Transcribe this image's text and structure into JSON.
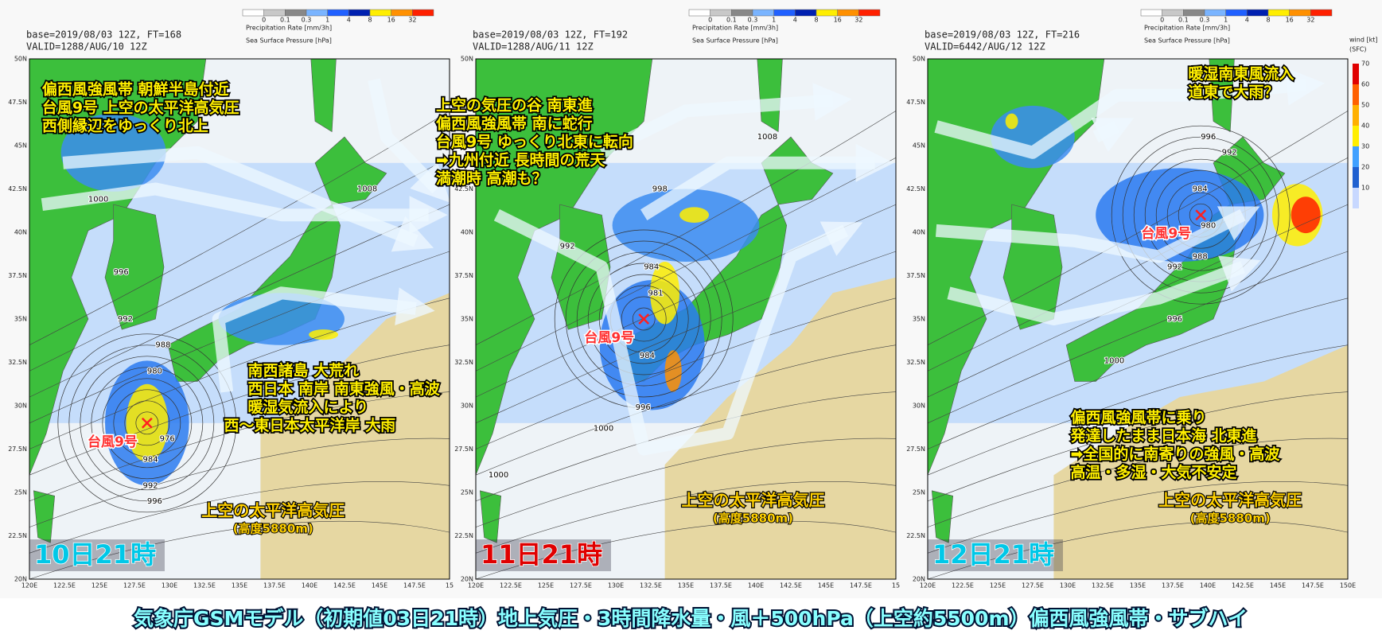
{
  "legend": {
    "precip_title": "Precipitation Rate [mm/3h]",
    "pressure_title": "Sea Surface Pressure [hPa]",
    "precip_levels": [
      0,
      0.1,
      0.3,
      1,
      4,
      8,
      16,
      32
    ],
    "wind_title": "wind [kt]",
    "wind_unit": "(SFC)",
    "wind_levels": [
      70,
      60,
      50,
      40,
      30,
      20,
      10
    ]
  },
  "axes": {
    "lat_labels": [
      "50N",
      "47.5N",
      "45N",
      "42.5N",
      "40N",
      "37.5N",
      "35N",
      "32.5N",
      "30N",
      "27.5N",
      "25N",
      "22.5N",
      "20N"
    ],
    "lon_labels": [
      "120E",
      "122.5E",
      "125E",
      "127.5E",
      "130E",
      "132.5E",
      "135E",
      "137.5E",
      "140E",
      "142.5E",
      "145E",
      "147.5E"
    ]
  },
  "panels": [
    {
      "base": "base=2019/08/03 12Z, FT=168",
      "valid": "VALID=1288/AUG/10 12Z",
      "lon_end": "15",
      "time": "10日21時",
      "typhoon": "台風9号",
      "note_a": [
        "偏西風強風帯 朝鮮半島付近",
        "台風9号 上空の太平洋高気圧",
        "西側縁辺をゆっくり北上"
      ],
      "note_b": [
        "南西諸島 大荒れ",
        "西日本 南岸 南東強風・高波",
        "暖湿気流入により",
        "西～東日本太平洋岸 大雨"
      ],
      "high": "上空の太平洋高気圧",
      "height": "(高度5880m)",
      "isobars": [
        1008,
        1000,
        996,
        992,
        988,
        980,
        976,
        984,
        992,
        996
      ]
    },
    {
      "base": "base=2019/08/03 12Z, FT=192",
      "valid": "VALID=1288/AUG/11 12Z",
      "lon_end": "15",
      "time": "11日21時",
      "typhoon": "台風9号",
      "note_a": [
        "上空の気圧の谷 南東進",
        "偏西風強風帯 南に蛇行",
        "台風9号 ゆっくり北東に転向",
        "➡九州付近 長時間の荒天",
        "満潮時 高潮も？"
      ],
      "note_b": [],
      "high": "上空の太平洋高気圧",
      "height": "(高度5880m)",
      "isobars": [
        1008,
        998,
        992,
        984,
        981,
        984,
        996,
        1000,
        1000
      ]
    },
    {
      "base": "base=2019/08/03 12Z, FT=216",
      "valid": "VALID=6442/AUG/12 12Z",
      "lon_end": "150E",
      "time": "12日21時",
      "typhoon": "台風9号",
      "note_a": [
        "暖湿南東風流入",
        "道東で大雨？"
      ],
      "note_b": [
        "偏西風強風帯に乗り",
        "発達したまま日本海 北東進",
        "➡全国的に南寄りの強風・高波",
        "高温・多湿・大気不安定"
      ],
      "high": "上空の太平洋高気圧",
      "height": "(高度5880m)",
      "isobars": [
        996,
        992,
        984,
        980,
        988,
        992,
        996,
        1000
      ]
    }
  ],
  "caption": "気象庁GSMモデル（初期値03日21時）地上気圧・3時間降水量・風＋500hPa（上空約5500m）偏西風強風帯・サブハイ"
}
